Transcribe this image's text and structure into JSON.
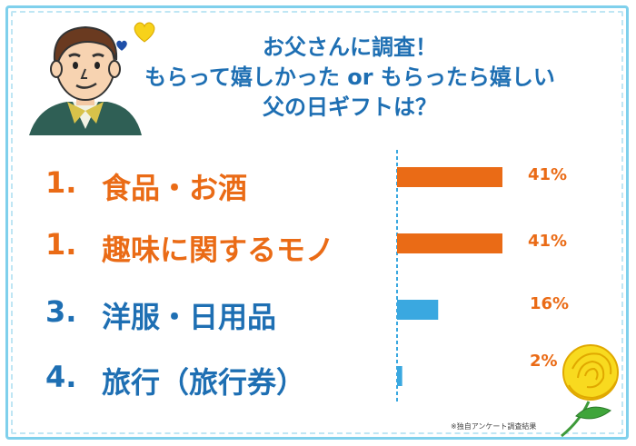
{
  "title": {
    "line1": "お父さんに調査！",
    "line2": "もらって嬉しかった or もらったら嬉しい",
    "line3": "父の日ギフトは？"
  },
  "footnote": "※独自アンケート調査結果",
  "colors": {
    "orange": "#ea6b16",
    "blue": "#3aa8e0",
    "title_blue": "#1e6fb3",
    "border": "#7fd0ec"
  },
  "chart_data": {
    "type": "bar",
    "orientation": "horizontal",
    "categories": [
      "食品・お酒",
      "趣味に関するモノ",
      "洋服・日用品",
      "旅行（旅行券）"
    ],
    "ranks": [
      "1.",
      "1.",
      "3.",
      "4."
    ],
    "values": [
      41,
      41,
      16,
      2
    ],
    "value_labels": [
      "41%",
      "41%",
      "16%",
      "2%"
    ],
    "unit": "%",
    "bar_colors": [
      "#ea6b16",
      "#ea6b16",
      "#3aa8e0",
      "#3aa8e0"
    ],
    "xlim": [
      0,
      100
    ],
    "grid": false,
    "legend": "none"
  }
}
